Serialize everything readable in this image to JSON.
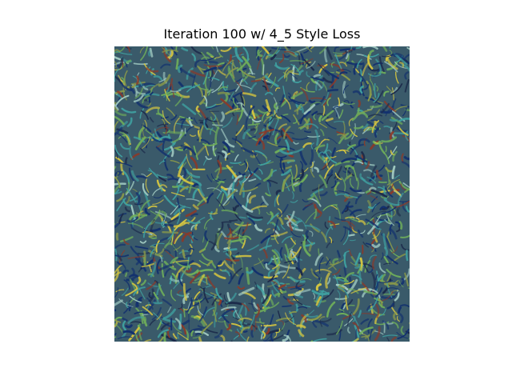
{
  "figure": {
    "title": "Iteration 100 w/ 4_5 Style Loss"
  },
  "image": {
    "description_icon": "style-transfer-texture-image",
    "palette": {
      "base": "#3a5a6a",
      "deep_blue": "#12306e",
      "navy": "#1c2a4a",
      "teal": "#3fa0a0",
      "green": "#6fae5a",
      "olive": "#8a9a4a",
      "yellow": "#d6c640",
      "rust": "#8a3a2a",
      "light": "#9fc8c0"
    }
  }
}
